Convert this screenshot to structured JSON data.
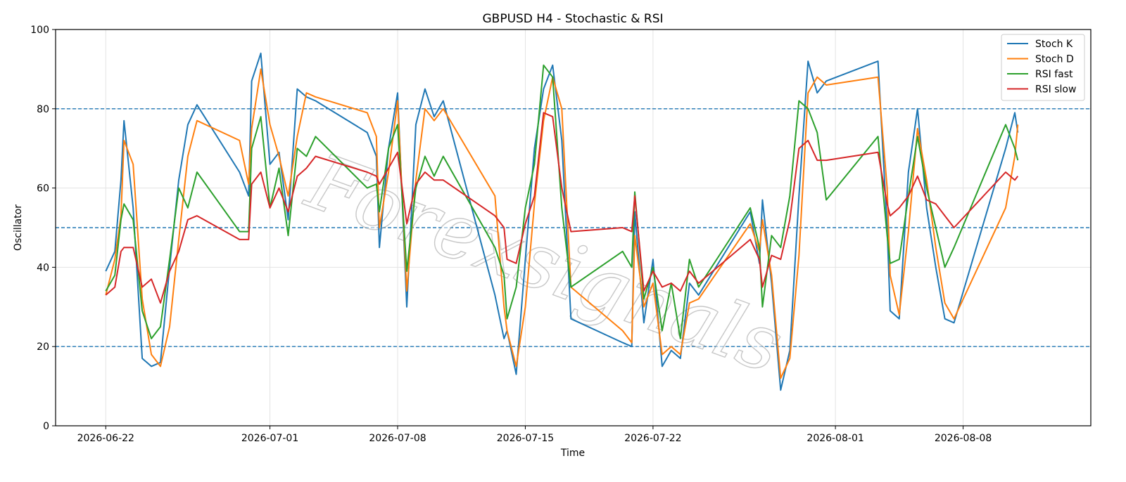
{
  "chart_data": {
    "type": "line",
    "title": "GBPUSD H4 - Stochastic & RSI",
    "xlabel": "Time",
    "ylabel": "Oscillator",
    "ylim": [
      0,
      100
    ],
    "xlim": [
      "2026-06-19T06:00",
      "2026-08-15T00:00"
    ],
    "x_ticks": [
      "2026-06-22",
      "2026-07-01",
      "2026-07-08",
      "2026-07-15",
      "2026-07-22",
      "2026-08-01",
      "2026-08-08"
    ],
    "y_ticks": [
      0,
      20,
      40,
      60,
      80,
      100
    ],
    "grid": true,
    "legend": "top-right",
    "reference_lines": [
      80,
      50,
      20
    ],
    "watermark": "Forexsignals",
    "x": [
      "2026-06-22T00:00",
      "2026-06-22T12:00",
      "2026-06-22T20:00",
      "2026-06-23T00:00",
      "2026-06-23T12:00",
      "2026-06-24T00:00",
      "2026-06-24T12:00",
      "2026-06-25T00:00",
      "2026-06-25T12:00",
      "2026-06-26T00:00",
      "2026-06-26T12:00",
      "2026-06-27T00:00",
      "2026-06-29T08:00",
      "2026-06-29T20:00",
      "2026-06-30T00:00",
      "2026-06-30T12:00",
      "2026-07-01T00:00",
      "2026-07-01T12:00",
      "2026-07-02T00:00",
      "2026-07-02T12:00",
      "2026-07-03T00:00",
      "2026-07-03T12:00",
      "2026-07-06T08:00",
      "2026-07-06T20:00",
      "2026-07-07T00:00",
      "2026-07-07T12:00",
      "2026-07-08T00:00",
      "2026-07-08T12:00",
      "2026-07-09T00:00",
      "2026-07-09T12:00",
      "2026-07-10T00:00",
      "2026-07-10T12:00",
      "2026-07-13T08:00",
      "2026-07-13T20:00",
      "2026-07-14T00:00",
      "2026-07-14T12:00",
      "2026-07-15T00:00",
      "2026-07-15T12:00",
      "2026-07-16T00:00",
      "2026-07-16T12:00",
      "2026-07-17T00:00",
      "2026-07-17T12:00",
      "2026-07-20T08:00",
      "2026-07-20T20:00",
      "2026-07-21T00:00",
      "2026-07-21T12:00",
      "2026-07-22T00:00",
      "2026-07-22T12:00",
      "2026-07-23T00:00",
      "2026-07-23T12:00",
      "2026-07-24T00:00",
      "2026-07-24T12:00",
      "2026-07-27T08:00",
      "2026-07-27T20:00",
      "2026-07-28T00:00",
      "2026-07-28T12:00",
      "2026-07-29T00:00",
      "2026-07-29T12:00",
      "2026-07-30T00:00",
      "2026-07-30T12:00",
      "2026-07-31T00:00",
      "2026-07-31T12:00",
      "2026-08-03T08:00",
      "2026-08-03T20:00",
      "2026-08-04T00:00",
      "2026-08-04T12:00",
      "2026-08-05T00:00",
      "2026-08-05T12:00",
      "2026-08-06T00:00",
      "2026-08-06T12:00",
      "2026-08-07T00:00",
      "2026-08-07T12:00",
      "2026-08-10T08:00",
      "2026-08-10T20:00",
      "2026-08-11T00:00"
    ],
    "series": [
      {
        "name": "Stoch K",
        "color": "#1f77b4",
        "values": [
          39,
          44,
          62,
          77,
          55,
          17,
          15,
          16,
          40,
          62,
          76,
          81,
          64,
          58,
          87,
          94,
          66,
          69,
          52,
          85,
          83,
          82,
          74,
          68,
          45,
          70,
          84,
          30,
          76,
          85,
          78,
          82,
          33,
          22,
          24,
          13,
          42,
          70,
          85,
          91,
          72,
          27,
          21,
          20,
          54,
          26,
          42,
          15,
          19,
          17,
          36,
          33,
          54,
          41,
          57,
          36,
          9,
          19,
          58,
          92,
          84,
          87,
          92,
          50,
          29,
          27,
          64,
          80,
          55,
          40,
          27,
          26,
          70,
          79,
          74
        ]
      },
      {
        "name": "Stoch D",
        "color": "#ff7f0e",
        "values": [
          33,
          42,
          53,
          72,
          66,
          32,
          18,
          15,
          25,
          47,
          68,
          77,
          72,
          61,
          75,
          90,
          76,
          68,
          58,
          73,
          84,
          83,
          79,
          73,
          50,
          64,
          82,
          34,
          62,
          80,
          77,
          80,
          58,
          30,
          24,
          15,
          30,
          56,
          77,
          88,
          80,
          35,
          24,
          21,
          48,
          30,
          36,
          18,
          20,
          18,
          31,
          32,
          51,
          44,
          52,
          38,
          12,
          17,
          43,
          84,
          88,
          86,
          88,
          60,
          38,
          28,
          49,
          75,
          62,
          45,
          31,
          27,
          55,
          68,
          76
        ]
      },
      {
        "name": "RSI fast",
        "color": "#2ca02c",
        "values": [
          34,
          38,
          52,
          56,
          52,
          29,
          22,
          25,
          42,
          60,
          55,
          64,
          49,
          49,
          70,
          78,
          55,
          65,
          48,
          70,
          68,
          73,
          60,
          61,
          54,
          70,
          76,
          39,
          60,
          68,
          63,
          68,
          45,
          38,
          27,
          35,
          55,
          66,
          91,
          88,
          55,
          35,
          44,
          40,
          59,
          32,
          40,
          24,
          36,
          22,
          42,
          35,
          55,
          45,
          30,
          48,
          45,
          58,
          82,
          80,
          74,
          57,
          73,
          48,
          41,
          42,
          58,
          73,
          60,
          50,
          40,
          45,
          76,
          70,
          67
        ]
      },
      {
        "name": "RSI slow",
        "color": "#d62728",
        "values": [
          33,
          35,
          44,
          45,
          45,
          35,
          37,
          31,
          39,
          44,
          52,
          53,
          47,
          47,
          61,
          64,
          55,
          60,
          54,
          63,
          65,
          68,
          64,
          63,
          61,
          65,
          69,
          51,
          61,
          64,
          62,
          62,
          53,
          50,
          42,
          41,
          51,
          58,
          79,
          78,
          60,
          49,
          50,
          49,
          58,
          34,
          39,
          35,
          36,
          34,
          39,
          36,
          47,
          42,
          35,
          43,
          42,
          52,
          70,
          72,
          67,
          67,
          69,
          56,
          53,
          55,
          58,
          63,
          57,
          56,
          53,
          50,
          64,
          62,
          63
        ]
      }
    ]
  }
}
